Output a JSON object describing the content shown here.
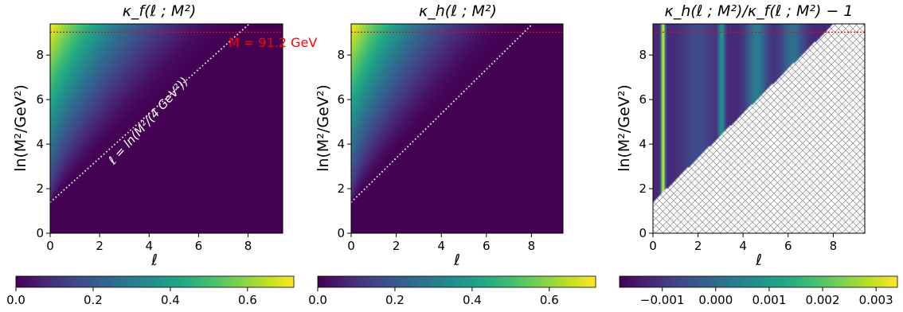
{
  "chart_data": [
    {
      "type": "heatmap",
      "title": "κ_f(ℓ ; M²)",
      "xlabel": "ℓ",
      "ylabel": "ln(M²/GeV²)",
      "xlim": [
        0,
        9.4
      ],
      "ylim": [
        0,
        9.4
      ],
      "xticks": [
        "0",
        "2",
        "4",
        "6",
        "8"
      ],
      "yticks": [
        "0",
        "2",
        "4",
        "6",
        "8"
      ],
      "colorbar": {
        "range": [
          0.0,
          0.72
        ],
        "ticks": [
          "0.0",
          "0.2",
          "0.4",
          "0.6"
        ]
      },
      "value_max": 0.72,
      "boundary_line": {
        "label": "ℓ = ln(M²/(4 GeV²))",
        "x": [
          0,
          8.05
        ],
        "y": [
          1.386,
          9.4
        ]
      },
      "reference_line": {
        "label": "M = 91.2 GeV",
        "y": 9.03
      },
      "colormap": "viridis"
    },
    {
      "type": "heatmap",
      "title": "κ_h(ℓ ; M²)",
      "xlabel": "ℓ",
      "ylabel": "ln(M²/GeV²)",
      "xlim": [
        0,
        9.4
      ],
      "ylim": [
        0,
        9.4
      ],
      "xticks": [
        "0",
        "2",
        "4",
        "6",
        "8"
      ],
      "yticks": [
        "0",
        "2",
        "4",
        "6",
        "8"
      ],
      "colorbar": {
        "range": [
          0.0,
          0.72
        ],
        "ticks": [
          "0.0",
          "0.2",
          "0.4",
          "0.6"
        ]
      },
      "value_max": 0.72,
      "boundary_line": {
        "x": [
          0,
          8.05
        ],
        "y": [
          1.386,
          9.4
        ]
      },
      "reference_line": {
        "y": 9.03
      },
      "colormap": "viridis"
    },
    {
      "type": "heatmap",
      "title": "κ_h(ℓ ; M²)/κ_f(ℓ ; M²) − 1",
      "xlabel": "ℓ",
      "ylabel": "ln(M²/GeV²)",
      "xlim": [
        0,
        9.4
      ],
      "ylim": [
        0,
        9.4
      ],
      "xticks": [
        "0",
        "2",
        "4",
        "6",
        "8"
      ],
      "yticks": [
        "0",
        "2",
        "4",
        "6",
        "8"
      ],
      "colorbar": {
        "range": [
          -0.0018,
          0.0034
        ],
        "ticks": [
          "−0.001",
          "0.000",
          "0.001",
          "0.002",
          "0.003"
        ],
        "tick_values": [
          -0.001,
          0.0,
          0.001,
          0.002,
          0.003
        ]
      },
      "bright_bands_at_ell": [
        0.45,
        3.05,
        4.6,
        6.2
      ],
      "masked_region": "below ℓ = ln(M²/(4 GeV²)) (hatched)",
      "reference_line": {
        "y": 9.03
      },
      "colormap": "viridis"
    }
  ],
  "colors": {
    "reference_line": "#ff0000",
    "boundary_line": "#ffffff",
    "hatch": "#888888"
  }
}
